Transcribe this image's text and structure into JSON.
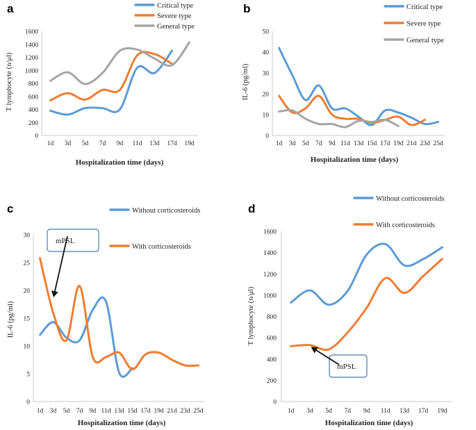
{
  "chart_data": [
    {
      "panel": "a",
      "type": "line",
      "ylabel": "T lymphocyte (n/μl)",
      "xlabel": "Hospitalization time (days)",
      "ylim": [
        0,
        1600
      ],
      "yticks": [
        0,
        200,
        400,
        600,
        800,
        1000,
        1200,
        1400,
        1600
      ],
      "categories": [
        "1d",
        "3d",
        "5d",
        "7d",
        "9d",
        "11d",
        "13d",
        "17d",
        "19d"
      ],
      "legend_position": "top-right",
      "series": [
        {
          "name": "Critical type",
          "color": "#5b9bd5",
          "values": [
            380,
            320,
            420,
            420,
            400,
            1040,
            960,
            1300,
            null
          ]
        },
        {
          "name": "Severe type",
          "color": "#ed7d31",
          "values": [
            540,
            650,
            550,
            700,
            700,
            1230,
            1250,
            1100,
            null
          ]
        },
        {
          "name": "General type",
          "color": "#a5a5a5",
          "values": [
            840,
            970,
            790,
            960,
            1300,
            1320,
            1180,
            1080,
            1430
          ]
        }
      ]
    },
    {
      "panel": "b",
      "type": "line",
      "ylabel": "IL-6 (pg/ml)",
      "xlabel": "Hospitalization time (days)",
      "ylim": [
        0,
        50
      ],
      "yticks": [
        0,
        10,
        20,
        30,
        40,
        50
      ],
      "categories": [
        "1d",
        "3d",
        "5d",
        "7d",
        "9d",
        "11d",
        "13d",
        "15d",
        "17d",
        "19d",
        "21d",
        "23d",
        "25d"
      ],
      "legend_position": "top-right",
      "series": [
        {
          "name": "Critical type",
          "color": "#5b9bd5",
          "values": [
            42,
            29,
            17,
            24,
            13,
            13,
            9,
            5,
            12,
            11,
            8.5,
            5.5,
            6.5
          ]
        },
        {
          "name": "Severe type",
          "color": "#ed7d31",
          "values": [
            19,
            11,
            13,
            19,
            10,
            8,
            8,
            6,
            7.5,
            9,
            5,
            7.5,
            null
          ]
        },
        {
          "name": "General type",
          "color": "#a5a5a5",
          "values": [
            11.5,
            12,
            8,
            5.5,
            5.5,
            4,
            7,
            6.5,
            7.5,
            4.5,
            null,
            null,
            null
          ]
        }
      ]
    },
    {
      "panel": "c",
      "type": "line",
      "ylabel": "IL-6 (pg/ml)",
      "xlabel": "Hospitalization time (days)",
      "ylim": [
        0,
        30
      ],
      "yticks": [
        0,
        5,
        10,
        15,
        20,
        25,
        30
      ],
      "categories": [
        "1d",
        "3d",
        "5d",
        "7d",
        "9d",
        "11d",
        "13d",
        "15d",
        "17d",
        "19d",
        "21d",
        "23d",
        "25d"
      ],
      "legend_position": "top-right",
      "annotation": {
        "text": "mPSL",
        "target_category": "3d",
        "target_value": 18.5
      },
      "series": [
        {
          "name": "Without corticosteroids",
          "color": "#5b9bd5",
          "values": [
            12,
            14.3,
            11.5,
            11,
            16.5,
            18,
            5.2,
            6,
            null,
            null,
            null,
            null,
            null
          ]
        },
        {
          "name": "With corticosteroids",
          "color": "#ed7d31",
          "values": [
            25.8,
            16,
            11,
            20.8,
            8,
            8,
            8.8,
            5.8,
            8.5,
            8.8,
            7.5,
            6.5,
            6.5
          ]
        }
      ]
    },
    {
      "panel": "d",
      "type": "line",
      "ylabel": "T lymphocyte (n/μl)",
      "xlabel": "Hospitalization time (days)",
      "ylim": [
        0,
        1600
      ],
      "yticks": [
        0,
        200,
        400,
        600,
        800,
        1000,
        1200,
        1400,
        1600
      ],
      "categories": [
        "1d",
        "3d",
        "5d",
        "7d",
        "9d",
        "11d",
        "13d",
        "17d",
        "19d"
      ],
      "legend_position": "top-right",
      "annotation": {
        "text": "mPSL",
        "target_category": "3d",
        "target_value": 520
      },
      "series": [
        {
          "name": "Without corticosteroids",
          "color": "#5b9bd5",
          "values": [
            930,
            1045,
            910,
            1040,
            1380,
            1480,
            1280,
            1340,
            1450
          ]
        },
        {
          "name": "With corticosteroids",
          "color": "#ed7d31",
          "values": [
            520,
            530,
            490,
            650,
            880,
            1160,
            1020,
            1180,
            1340
          ]
        }
      ]
    }
  ]
}
